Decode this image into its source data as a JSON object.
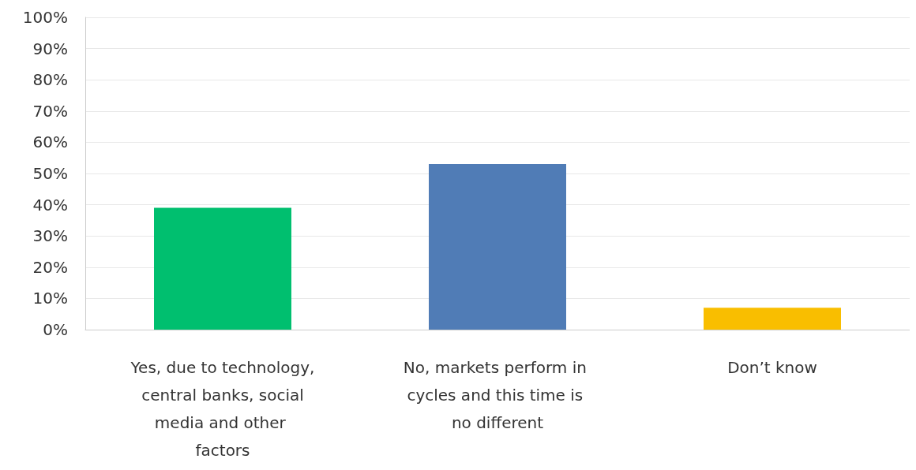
{
  "chart_data": {
    "type": "bar",
    "categories": [
      "Yes, due to technology, central banks, social media and other factors",
      "No, markets perform in cycles and this time is no different",
      "Don’t know"
    ],
    "values": [
      39,
      53,
      7
    ],
    "colors": [
      "#00bf6f",
      "#507cb6",
      "#f9be00"
    ],
    "ylim": [
      0,
      100
    ],
    "yticks": [
      {
        "value": 0,
        "label": "0%"
      },
      {
        "value": 10,
        "label": "10%"
      },
      {
        "value": 20,
        "label": "20%"
      },
      {
        "value": 30,
        "label": "30%"
      },
      {
        "value": 40,
        "label": "40%"
      },
      {
        "value": 50,
        "label": "50%"
      },
      {
        "value": 60,
        "label": "60%"
      },
      {
        "value": 70,
        "label": "70%"
      },
      {
        "value": 80,
        "label": "80%"
      },
      {
        "value": 90,
        "label": "90%"
      },
      {
        "value": 100,
        "label": "100%"
      }
    ],
    "grid": "y"
  }
}
